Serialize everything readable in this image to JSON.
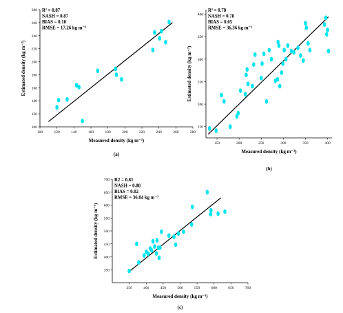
{
  "chart_data": [
    {
      "type": "scatter",
      "panel_label": "(a)",
      "xlabel": "Measured density (kg m⁻³)",
      "ylabel": "Estimated density (kg m⁻³)",
      "xlim": [
        100,
        280
      ],
      "ylim": [
        100,
        280
      ],
      "xticks": [
        100,
        120,
        140,
        160,
        180,
        200,
        220,
        240,
        260,
        280
      ],
      "yticks": [
        100,
        120,
        140,
        160,
        180,
        200,
        220,
        240,
        260,
        280
      ],
      "stats": [
        "R² = 0.87",
        "NASH = 0.87",
        "BIAS = 0.10",
        "RMSE = 17.26 kg m⁻³"
      ],
      "fit": {
        "x": [
          110,
          256
        ],
        "y": [
          108,
          260
        ]
      },
      "points": {
        "x": [
          120,
          122,
          132,
          143,
          146,
          150,
          168,
          189,
          190,
          196,
          233,
          235,
          241,
          243,
          248,
          252
        ],
        "y": [
          130,
          141,
          142,
          164,
          161,
          109,
          186,
          189,
          180,
          173,
          218,
          245,
          236,
          247,
          230,
          261
        ]
      },
      "marker_color": "#00e5ee",
      "line_color": "#000000"
    },
    {
      "type": "scatter",
      "panel_label": "(b)",
      "xlabel": "Measured density (kg m⁻³)",
      "ylabel": "Estimated density (kg m⁻³)",
      "xlim": [
        125,
        410
      ],
      "ylim": [
        125,
        410
      ],
      "xticks": [
        150,
        200,
        250,
        300,
        350,
        400
      ],
      "yticks": [
        150,
        200,
        250,
        300,
        350,
        400
      ],
      "stats": [
        "R² = 0.78",
        "NASH = 0.78",
        "BIAS = 0.05",
        "RMSE = 36.36 kg m⁻³"
      ],
      "fit": {
        "x": [
          130,
          402
        ],
        "y": [
          133,
          394
        ]
      },
      "points": {
        "x": [
          133,
          148,
          160,
          166,
          180,
          195,
          198,
          203,
          214,
          216,
          218,
          220,
          230,
          233,
          236,
          250,
          252,
          256,
          262,
          268,
          273,
          282,
          287,
          288,
          290,
          292,
          296,
          299,
          302,
          306,
          310,
          318,
          324,
          333,
          339,
          345,
          350,
          352,
          356,
          360,
          393,
          396,
          398,
          400,
          402
        ],
        "y": [
          146,
          141,
          220,
          206,
          150,
          173,
          180,
          230,
          222,
          265,
          277,
          245,
          240,
          288,
          310,
          258,
          290,
          312,
          206,
          320,
          300,
          252,
          255,
          338,
          330,
          240,
          270,
          290,
          320,
          300,
          330,
          318,
          315,
          325,
          308,
          297,
          380,
          370,
          335,
          320,
          377,
          392,
          355,
          365,
          318
        ]
      },
      "marker_color": "#00e5ee",
      "line_color": "#000000"
    },
    {
      "type": "scatter",
      "panel_label": "(c)",
      "xlabel": "Measured density (kg m⁻³)",
      "ylabel": "Estimated density (kg m⁻³)",
      "xlim": [
        300,
        700
      ],
      "ylim": [
        300,
        700
      ],
      "xticks": [
        350,
        400,
        450,
        500,
        550,
        600,
        650,
        700
      ],
      "yticks": [
        350,
        400,
        450,
        500,
        550,
        600,
        650,
        700
      ],
      "stats": [
        "R2 = 0.81",
        "NASH = 0.80",
        "BIAS = 0.02",
        "RMSE = 36.04 kg m⁻³"
      ],
      "fit": {
        "x": [
          350,
          620
        ],
        "y": [
          343,
          628
        ]
      },
      "points": {
        "x": [
          350,
          372,
          378,
          394,
          400,
          406,
          412,
          416,
          420,
          425,
          430,
          432,
          436,
          438,
          441,
          445,
          467,
          482,
          487,
          495,
          510,
          534,
          536,
          580,
          590,
          591,
          612,
          632
        ],
        "y": [
          345,
          450,
          378,
          405,
          420,
          412,
          432,
          425,
          460,
          440,
          413,
          464,
          435,
          396,
          436,
          497,
          482,
          478,
          447,
          490,
          497,
          525,
          593,
          650,
          565,
          580,
          567,
          575
        ]
      },
      "marker_color": "#00e5ee",
      "line_color": "#000000"
    }
  ]
}
